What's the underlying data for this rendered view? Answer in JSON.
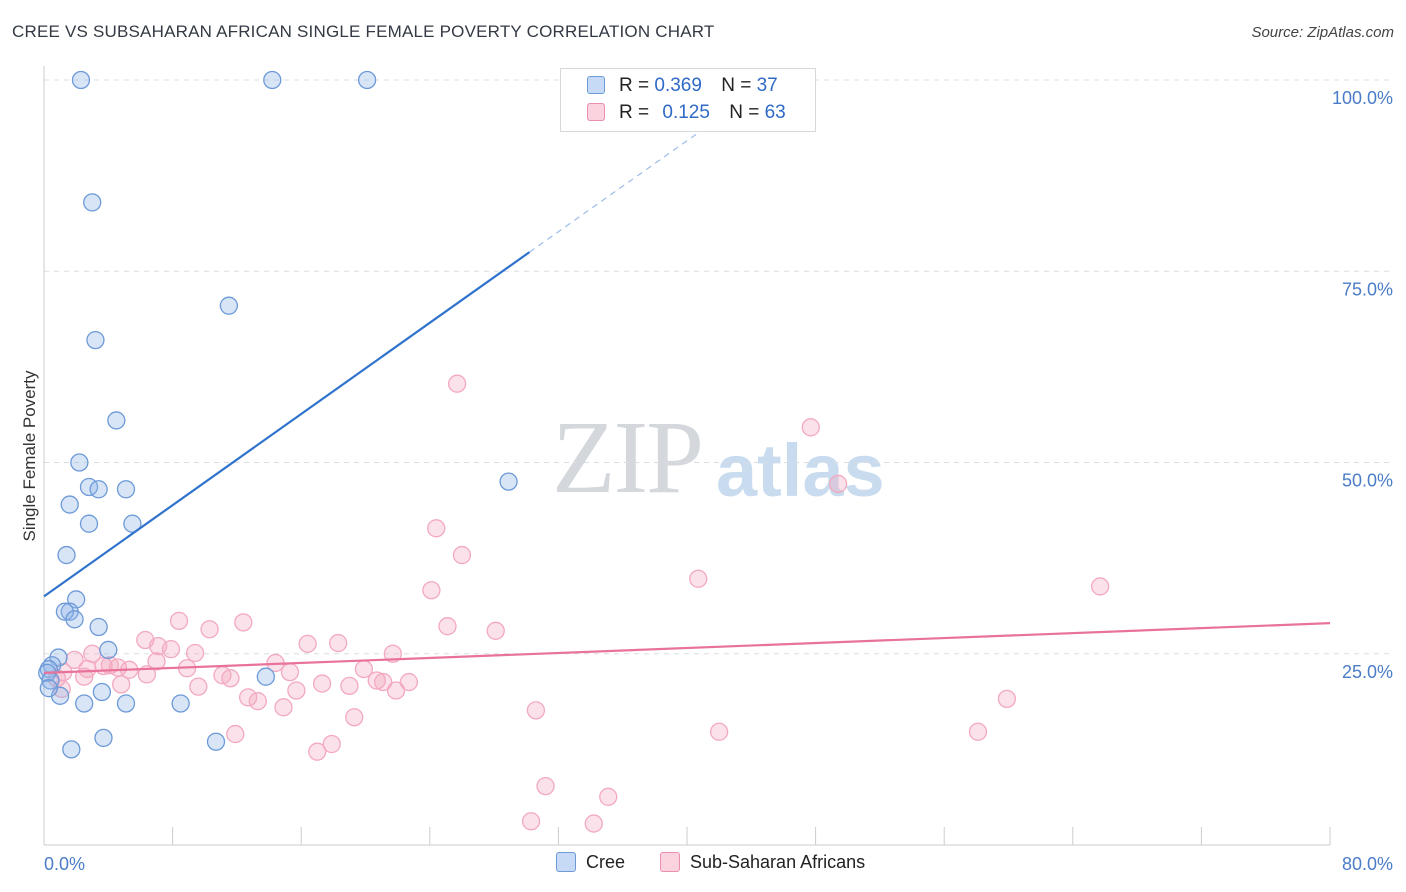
{
  "title": "CREE VS SUBSAHARAN AFRICAN SINGLE FEMALE POVERTY CORRELATION CHART",
  "source": "Source: ZipAtlas.com",
  "watermark": {
    "zip": "ZIP",
    "atlas": "atlas"
  },
  "legend": {
    "rows": [
      {
        "r_label": "R =",
        "r_value": "0.369",
        "n_label": "N =",
        "n_value": "37"
      },
      {
        "r_label": "R =",
        "r_value": "0.125",
        "n_label": "N =",
        "n_value": "63"
      }
    ]
  },
  "bottom_legend": {
    "series1": "Cree",
    "series2": "Sub-Saharan Africans"
  },
  "chart_data": {
    "type": "scatter",
    "title": "CREE VS SUBSAHARAN AFRICAN SINGLE FEMALE POVERTY CORRELATION CHART",
    "xlabel": "",
    "ylabel": "Single Female Poverty",
    "xlim": [
      0,
      80
    ],
    "ylim": [
      0,
      100
    ],
    "x_tick_labels": [
      "0.0%",
      "80.0%"
    ],
    "y_tick_labels": [
      "100.0%",
      "75.0%",
      "50.0%",
      "25.0%"
    ],
    "y_tick_values": [
      100,
      75,
      50,
      25
    ],
    "grid": true,
    "colors": {
      "cree": "#8fb5e8",
      "cree_line": "#2f73cc",
      "ssa": "#f3a9c0",
      "ssa_line": "#e8729a"
    },
    "series": [
      {
        "name": "Cree",
        "R": 0.369,
        "N": 37,
        "trend": {
          "x0": 0,
          "y0": 32.5,
          "x1": 30.2,
          "y1": 77.5,
          "dash_to_x": 44,
          "dash_to_y": 98
        },
        "points": [
          [
            2.3,
            100
          ],
          [
            14.2,
            100
          ],
          [
            20.1,
            100
          ],
          [
            3.0,
            84
          ],
          [
            11.5,
            70.5
          ],
          [
            3.2,
            66
          ],
          [
            4.5,
            55.5
          ],
          [
            2.2,
            50
          ],
          [
            2.8,
            46.8
          ],
          [
            5.1,
            46.5
          ],
          [
            3.4,
            46.5
          ],
          [
            1.6,
            44.5
          ],
          [
            5.5,
            42
          ],
          [
            2.8,
            42
          ],
          [
            1.4,
            37.9
          ],
          [
            2.0,
            32.1
          ],
          [
            1.6,
            30.5
          ],
          [
            1.3,
            30.5
          ],
          [
            1.9,
            29.5
          ],
          [
            3.4,
            28.5
          ],
          [
            4.0,
            25.5
          ],
          [
            0.9,
            24.5
          ],
          [
            0.5,
            23.5
          ],
          [
            0.3,
            23.0
          ],
          [
            0.2,
            22.5
          ],
          [
            0.4,
            21.5
          ],
          [
            13.8,
            22.0
          ],
          [
            1.0,
            19.5
          ],
          [
            3.6,
            20.0
          ],
          [
            2.5,
            18.5
          ],
          [
            5.1,
            18.5
          ],
          [
            8.5,
            18.5
          ],
          [
            1.7,
            12.5
          ],
          [
            3.7,
            14.0
          ],
          [
            10.7,
            13.5
          ],
          [
            28.9,
            47.5
          ],
          [
            0.3,
            20.5
          ]
        ]
      },
      {
        "name": "Sub-Saharan Africans",
        "R": 0.125,
        "N": 63,
        "trend": {
          "x0": 0,
          "y0": 22.5,
          "x1": 80,
          "y1": 29.0
        },
        "points": [
          [
            25.7,
            60.3
          ],
          [
            47.7,
            54.6
          ],
          [
            49.4,
            47.2
          ],
          [
            24.4,
            41.4
          ],
          [
            26.0,
            37.9
          ],
          [
            40.7,
            34.8
          ],
          [
            65.7,
            33.8
          ],
          [
            24.1,
            33.3
          ],
          [
            25.1,
            28.6
          ],
          [
            8.4,
            29.3
          ],
          [
            10.3,
            28.2
          ],
          [
            12.4,
            29.1
          ],
          [
            28.1,
            28.0
          ],
          [
            6.3,
            26.8
          ],
          [
            16.4,
            26.3
          ],
          [
            18.3,
            26.4
          ],
          [
            7.1,
            26.0
          ],
          [
            7.9,
            25.6
          ],
          [
            9.4,
            25.1
          ],
          [
            3.0,
            25.0
          ],
          [
            21.7,
            25.0
          ],
          [
            1.9,
            24.2
          ],
          [
            4.1,
            23.5
          ],
          [
            7.0,
            24.0
          ],
          [
            2.7,
            23.0
          ],
          [
            4.6,
            23.2
          ],
          [
            3.7,
            23.4
          ],
          [
            8.9,
            23.1
          ],
          [
            14.4,
            23.8
          ],
          [
            5.3,
            22.9
          ],
          [
            1.2,
            22.6
          ],
          [
            6.4,
            22.3
          ],
          [
            11.1,
            22.2
          ],
          [
            15.3,
            22.6
          ],
          [
            19.9,
            23.0
          ],
          [
            0.8,
            21.8
          ],
          [
            11.6,
            21.8
          ],
          [
            20.7,
            21.5
          ],
          [
            21.1,
            21.3
          ],
          [
            22.7,
            21.3
          ],
          [
            17.3,
            21.1
          ],
          [
            19.0,
            20.8
          ],
          [
            4.8,
            21.0
          ],
          [
            9.6,
            20.7
          ],
          [
            1.1,
            20.4
          ],
          [
            15.7,
            20.2
          ],
          [
            21.9,
            20.2
          ],
          [
            12.7,
            19.3
          ],
          [
            13.3,
            18.8
          ],
          [
            14.9,
            18.0
          ],
          [
            59.9,
            19.1
          ],
          [
            30.6,
            17.6
          ],
          [
            19.3,
            16.7
          ],
          [
            42.0,
            14.8
          ],
          [
            58.1,
            14.8
          ],
          [
            11.9,
            14.5
          ],
          [
            17.9,
            13.2
          ],
          [
            17.0,
            12.2
          ],
          [
            31.2,
            7.7
          ],
          [
            35.1,
            6.3
          ],
          [
            30.3,
            3.1
          ],
          [
            34.2,
            2.8
          ],
          [
            2.5,
            22.0
          ]
        ]
      }
    ]
  }
}
